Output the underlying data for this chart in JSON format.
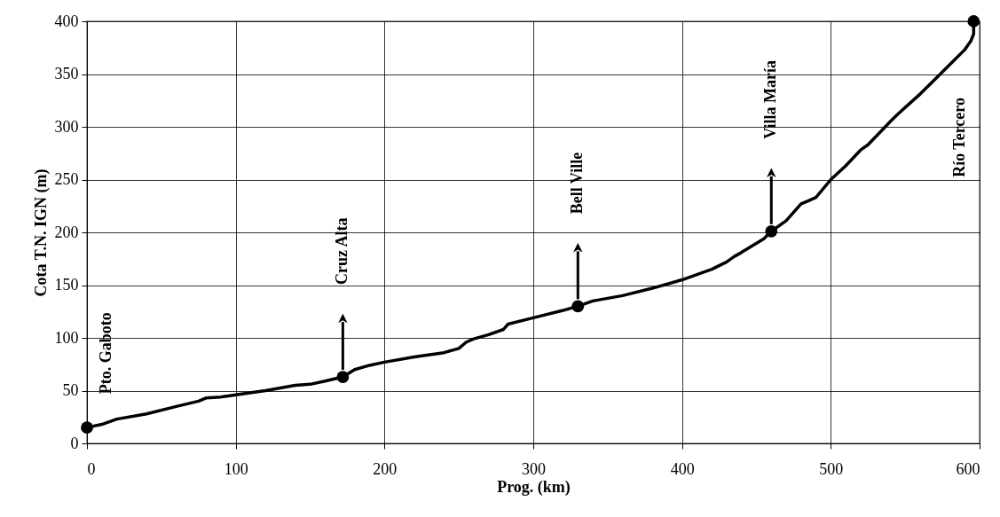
{
  "chart_data": {
    "type": "line",
    "xlabel": "Prog. (km)",
    "ylabel": "Cota T.N. IGN (m)",
    "xlim": [
      0,
      600
    ],
    "xticks": [
      0,
      100,
      200,
      300,
      400,
      500,
      600
    ],
    "ylim": [
      0,
      400
    ],
    "yticks": [
      0,
      50,
      100,
      150,
      200,
      250,
      300,
      350,
      400
    ],
    "grid": true,
    "series": [
      {
        "color": "#000000",
        "line_style": "solid",
        "x": [
          0,
          10,
          20,
          40,
          60,
          75,
          80,
          90,
          100,
          120,
          140,
          150,
          160,
          172,
          180,
          190,
          200,
          220,
          240,
          250,
          255,
          260,
          270,
          280,
          283,
          300,
          320,
          330,
          340,
          360,
          380,
          400,
          410,
          420,
          430,
          435,
          440,
          455,
          460,
          470,
          480,
          485,
          490,
          500,
          510,
          520,
          525,
          540,
          545,
          560,
          570,
          580,
          590,
          594,
          596,
          596
        ],
        "values": [
          15,
          18,
          23,
          28,
          35,
          40,
          43,
          44,
          46,
          50,
          55,
          56,
          59,
          63,
          70,
          74,
          77,
          82,
          86,
          90,
          96,
          99,
          103,
          108,
          113,
          119,
          126,
          130,
          135,
          140,
          147,
          155,
          160,
          165,
          172,
          177,
          181,
          194,
          201,
          211,
          227,
          230,
          233,
          250,
          263,
          278,
          283,
          305,
          312,
          331,
          345,
          359,
          373,
          381,
          388,
          400
        ]
      },
      {
        "type": "scatter",
        "color": "#000000",
        "marker": "circle",
        "x": [
          0,
          172,
          330,
          460,
          596
        ],
        "values": [
          15,
          63,
          130,
          201,
          400
        ]
      }
    ],
    "annotations": [
      "Pto. Gaboto",
      "Cruz Alta",
      "Bell Ville",
      "Villa María",
      "Río Tercero"
    ]
  }
}
